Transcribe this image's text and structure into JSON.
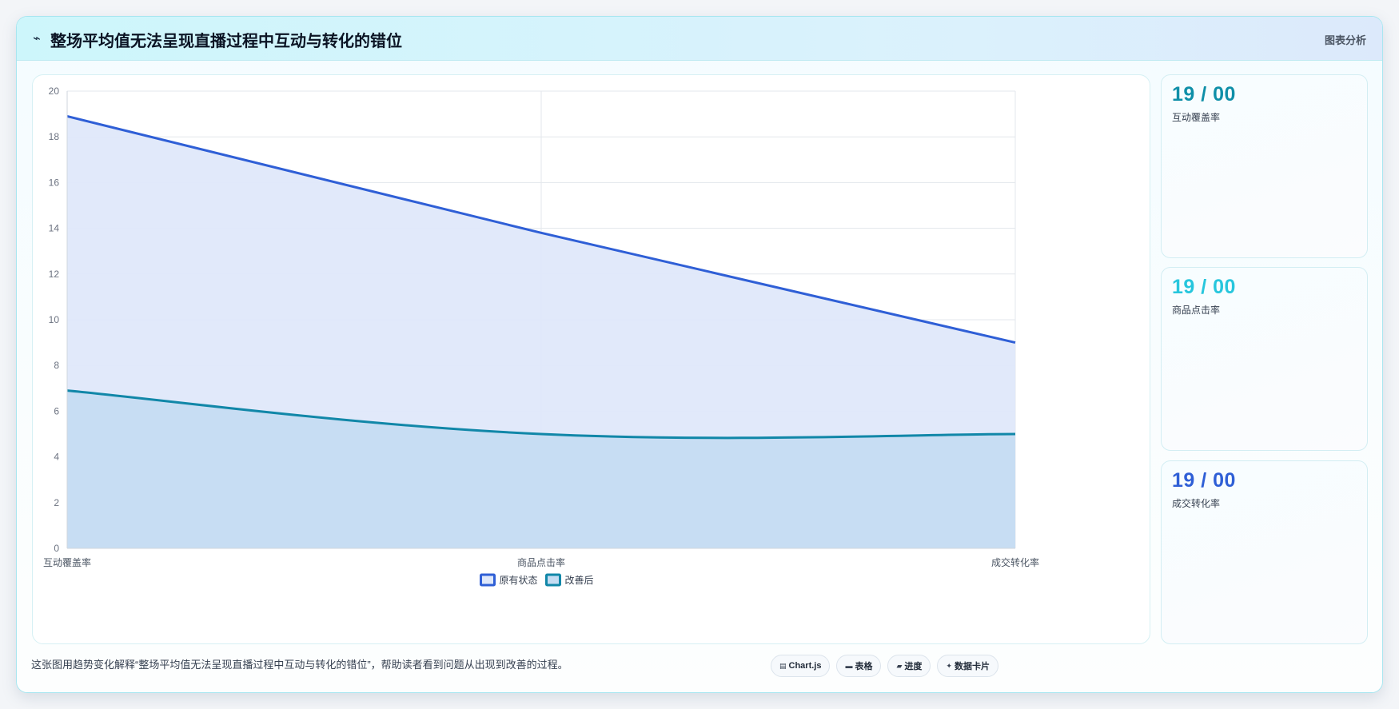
{
  "header": {
    "icon": "chart-wave-icon",
    "title": "整场平均值无法呈现直播过程中互动与转化的错位",
    "tag": "图表分析"
  },
  "chart_data": {
    "type": "area",
    "categories": [
      "互动覆盖率",
      "商品点击率",
      "成交转化率"
    ],
    "series": [
      {
        "name": "原有状态",
        "values": [
          18.9,
          13.8,
          9
        ],
        "color": "#2f5fd6",
        "fill": "#dfe8fa"
      },
      {
        "name": "改善后",
        "values": [
          6.9,
          5,
          5
        ],
        "color": "#1187a8",
        "fill": "#c4dcf2"
      }
    ],
    "ylim": [
      0,
      20
    ],
    "yticks": [
      0,
      2,
      4,
      6,
      8,
      10,
      12,
      14,
      16,
      18,
      20
    ],
    "grid": true,
    "legend_position": "bottom-center"
  },
  "stats": [
    {
      "value": "19 / 00",
      "label": "互动覆盖率",
      "color": "#0f8fa8"
    },
    {
      "value": "19 / 00",
      "label": "商品点击率",
      "color": "#27c6dd"
    },
    {
      "value": "19 / 00",
      "label": "成交转化率",
      "color": "#2f5fd6"
    }
  ],
  "footer": {
    "note": "这张图用趋势变化解释“整场平均值无法呈现直播过程中互动与转化的错位”，帮助读者看到问题从出现到改善的过程。",
    "chips": [
      {
        "icon": "chart-icon",
        "glyph": "▤",
        "label": "Chart.js"
      },
      {
        "icon": "table-icon",
        "glyph": "▬",
        "label": "表格"
      },
      {
        "icon": "progress-icon",
        "glyph": "▰",
        "label": "进度"
      },
      {
        "icon": "sparkle-icon",
        "glyph": "✦",
        "label": "数据卡片"
      }
    ]
  }
}
